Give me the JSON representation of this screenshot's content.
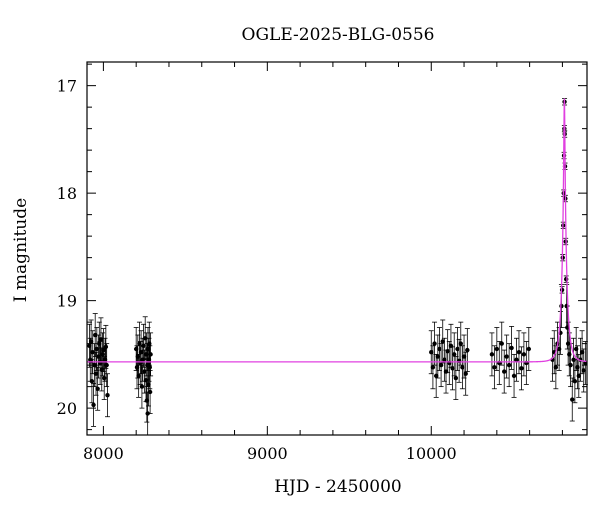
{
  "chart_data": {
    "type": "scatter",
    "title": "OGLE-2025-BLG-0556",
    "xlabel": "HJD - 2450000",
    "ylabel": "I magnitude",
    "xlim": [
      7900,
      10950
    ],
    "ylim": [
      20.25,
      16.78
    ],
    "y_inverted": true,
    "x_ticks": [
      8000,
      9000,
      10000
    ],
    "y_ticks": [
      17,
      18,
      19,
      20
    ],
    "grid": false,
    "colors": {
      "data": "#000000",
      "model": "#e040e0",
      "axes": "#000000"
    },
    "baseline_mag": 19.57,
    "model": {
      "type": "microlensing-fit",
      "peak_x": 10812,
      "peak_mag": 17.12,
      "baseline_mag": 19.57
    },
    "series": [
      {
        "type": "scatter-with-errorbars",
        "points": [
          [
            7915,
            19.42
          ],
          [
            7920,
            19.55
          ],
          [
            7925,
            19.38
          ],
          [
            7930,
            19.75
          ],
          [
            7935,
            19.48
          ],
          [
            7940,
            19.97
          ],
          [
            7945,
            19.6
          ],
          [
            7950,
            19.32
          ],
          [
            7955,
            19.68
          ],
          [
            7960,
            19.45
          ],
          [
            7965,
            19.82
          ],
          [
            7970,
            19.52
          ],
          [
            7975,
            19.4
          ],
          [
            7980,
            19.58
          ],
          [
            7985,
            19.36
          ],
          [
            7990,
            19.64
          ],
          [
            7995,
            19.5
          ],
          [
            8000,
            19.46
          ],
          [
            8005,
            19.72
          ],
          [
            8010,
            19.55
          ],
          [
            8015,
            19.43
          ],
          [
            8020,
            19.6
          ],
          [
            8025,
            19.88
          ],
          [
            8200,
            19.45
          ],
          [
            8205,
            19.62
          ],
          [
            8210,
            19.52
          ],
          [
            8215,
            19.7
          ],
          [
            8220,
            19.4
          ],
          [
            8225,
            19.58
          ],
          [
            8230,
            19.48
          ],
          [
            8235,
            19.8
          ],
          [
            8240,
            19.55
          ],
          [
            8245,
            19.42
          ],
          [
            8250,
            19.66
          ],
          [
            8255,
            19.35
          ],
          [
            8260,
            19.74
          ],
          [
            8262,
            19.5
          ],
          [
            8265,
            19.93
          ],
          [
            8268,
            19.6
          ],
          [
            8270,
            20.05
          ],
          [
            8272,
            19.45
          ],
          [
            8275,
            19.78
          ],
          [
            8278,
            19.55
          ],
          [
            8280,
            19.4
          ],
          [
            8283,
            19.62
          ],
          [
            8285,
            19.85
          ],
          [
            8288,
            19.5
          ],
          [
            10000,
            19.48
          ],
          [
            10010,
            19.62
          ],
          [
            10020,
            19.4
          ],
          [
            10030,
            19.7
          ],
          [
            10040,
            19.52
          ],
          [
            10050,
            19.45
          ],
          [
            10060,
            19.6
          ],
          [
            10070,
            19.38
          ],
          [
            10080,
            19.55
          ],
          [
            10090,
            19.66
          ],
          [
            10100,
            19.47
          ],
          [
            10110,
            19.58
          ],
          [
            10120,
            19.42
          ],
          [
            10130,
            19.63
          ],
          [
            10140,
            19.5
          ],
          [
            10150,
            19.72
          ],
          [
            10160,
            19.45
          ],
          [
            10170,
            19.56
          ],
          [
            10180,
            19.4
          ],
          [
            10190,
            19.62
          ],
          [
            10200,
            19.52
          ],
          [
            10210,
            19.68
          ],
          [
            10220,
            19.46
          ],
          [
            10370,
            19.5
          ],
          [
            10385,
            19.62
          ],
          [
            10400,
            19.45
          ],
          [
            10415,
            19.58
          ],
          [
            10430,
            19.4
          ],
          [
            10445,
            19.66
          ],
          [
            10460,
            19.52
          ],
          [
            10475,
            19.6
          ],
          [
            10490,
            19.44
          ],
          [
            10505,
            19.7
          ],
          [
            10520,
            19.55
          ],
          [
            10535,
            19.48
          ],
          [
            10550,
            19.63
          ],
          [
            10565,
            19.5
          ],
          [
            10580,
            19.58
          ],
          [
            10595,
            19.45
          ],
          [
            10740,
            19.55
          ],
          [
            10750,
            19.48
          ],
          [
            10760,
            19.62
          ],
          [
            10770,
            19.4
          ],
          [
            10780,
            19.45
          ],
          [
            10788,
            19.3
          ],
          [
            10794,
            19.05
          ],
          [
            10798,
            18.9
          ],
          [
            10802,
            18.6
          ],
          [
            10805,
            18.3
          ],
          [
            10808,
            18.0
          ],
          [
            10810,
            17.65
          ],
          [
            10812,
            17.4
          ],
          [
            10813,
            17.15
          ],
          [
            10814,
            17.45
          ],
          [
            10816,
            17.75
          ],
          [
            10818,
            18.05
          ],
          [
            10820,
            18.45
          ],
          [
            10823,
            18.8
          ],
          [
            10826,
            19.05
          ],
          [
            10830,
            19.25
          ],
          [
            10835,
            19.4
          ],
          [
            10842,
            19.5
          ],
          [
            10850,
            19.6
          ],
          [
            10860,
            19.92
          ],
          [
            10868,
            19.55
          ],
          [
            10876,
            19.75
          ],
          [
            10884,
            19.45
          ],
          [
            10892,
            19.62
          ],
          [
            10900,
            19.7
          ],
          [
            10910,
            19.55
          ],
          [
            10920,
            19.48
          ],
          [
            10930,
            19.65
          ],
          [
            10940,
            19.58
          ]
        ]
      }
    ]
  }
}
